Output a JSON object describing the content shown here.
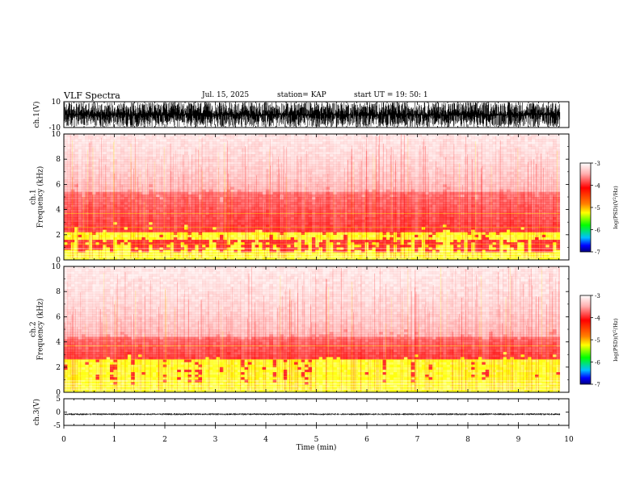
{
  "header": {
    "title": "VLF Spectra",
    "date": "Jul. 15, 2025",
    "station": "station= KAP",
    "start": "start  UT =   19: 50: 1"
  },
  "chart_data": [
    {
      "type": "line",
      "name": "ch1-waveform",
      "ylabel": "ch.1(V)",
      "ylim": [
        -10,
        10
      ],
      "yticks": [
        "10",
        "-10"
      ],
      "xlim": [
        0,
        10
      ],
      "amplitude_range": [
        -10,
        10
      ]
    },
    {
      "type": "heatmap",
      "name": "ch1-spectrogram",
      "ylabel": "ch.1\nFrequency (kHz)",
      "ylabel_lines": [
        "ch.1",
        "Frequency  (kHz)"
      ],
      "ylim": [
        0,
        10
      ],
      "yticks": [
        "0",
        "2",
        "4",
        "6",
        "8",
        "10"
      ],
      "xlim": [
        0,
        10
      ],
      "colorbar": {
        "label": "log(PSD)(V^2/Hz)",
        "label_text": "log(PSD)(V",
        "label_sup": "2",
        "label_end": "/Hz)",
        "range": [
          -7,
          -3
        ],
        "ticks": [
          "-3",
          "-4",
          "-5",
          "-6",
          "-7"
        ]
      },
      "bands_khz": {
        "yellow": [
          1.6,
          2.2
        ],
        "red_top": 5.5
      }
    },
    {
      "type": "heatmap",
      "name": "ch2-spectrogram",
      "ylabel": "ch.2\nFrequency (kHz)",
      "ylabel_lines": [
        "ch.2",
        "Frequency  (kHz)"
      ],
      "ylim": [
        0,
        10
      ],
      "yticks": [
        "0",
        "2",
        "4",
        "6",
        "8",
        "10"
      ],
      "xlim": [
        0,
        10
      ],
      "colorbar": {
        "label": "log(PSD)(V^2/Hz)",
        "label_text": "log(PSD)(V",
        "label_sup": "2",
        "label_end": "/Hz)",
        "range": [
          -7,
          -3
        ],
        "ticks": [
          "-3",
          "-4",
          "-5",
          "-6",
          "-7"
        ]
      },
      "bands_khz": {
        "yellow": [
          1.0,
          2.6
        ],
        "red_top": 4.5
      }
    },
    {
      "type": "line",
      "name": "ch3-waveform",
      "ylabel": "ch.3(V)",
      "ylim": [
        -5,
        5
      ],
      "yticks": [
        "5",
        "0",
        "-5"
      ],
      "xlim": [
        0,
        10
      ],
      "amplitude_range": [
        -1.2,
        -0.4
      ]
    }
  ],
  "xaxis": {
    "label": "Time (min)",
    "ticks": [
      "0",
      "1",
      "2",
      "3",
      "4",
      "5",
      "6",
      "7",
      "8",
      "9",
      "10"
    ],
    "data_end": 9.82
  },
  "colors": {
    "red": "#ff0000",
    "yellow": "#ffff00",
    "green": "#00ff00",
    "blue": "#0000ff",
    "navy": "#000080",
    "white": "#ffffff"
  }
}
